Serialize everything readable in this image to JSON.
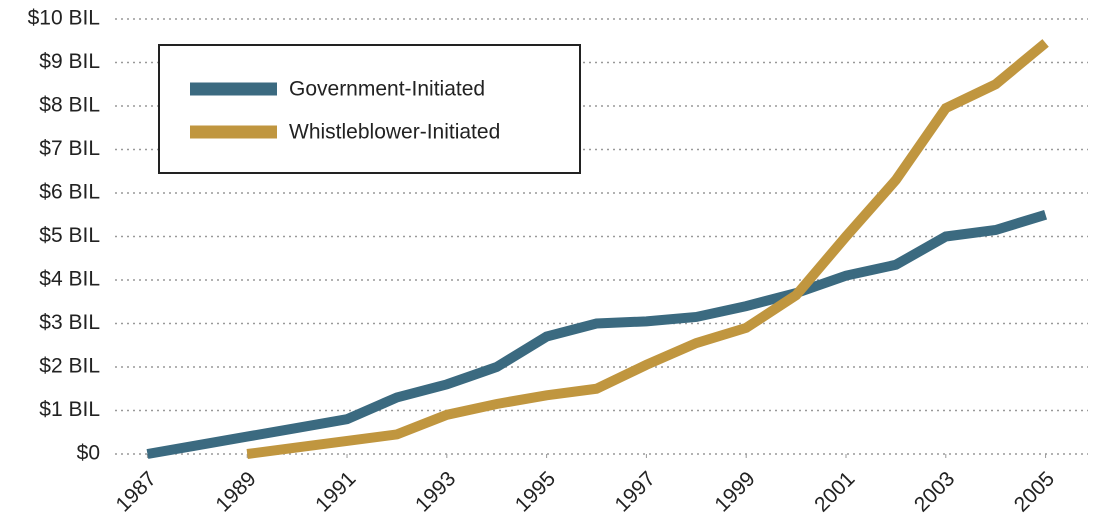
{
  "chart_data": {
    "type": "line",
    "x": [
      1987,
      1988,
      1989,
      1990,
      1991,
      1992,
      1993,
      1994,
      1995,
      1996,
      1997,
      1998,
      1999,
      2000,
      2001,
      2002,
      2003,
      2004,
      2005
    ],
    "series": [
      {
        "name": "Government-Initiated",
        "color": "#3b6a80",
        "values": [
          0,
          0.2,
          0.4,
          0.6,
          0.8,
          1.3,
          1.6,
          2.0,
          2.7,
          3.0,
          3.05,
          3.15,
          3.4,
          3.7,
          4.1,
          4.35,
          5.0,
          5.15,
          5.5
        ]
      },
      {
        "name": "Whistleblower-Initiated",
        "color": "#c0963f",
        "values": [
          null,
          null,
          0,
          0.15,
          0.3,
          0.45,
          0.9,
          1.15,
          1.35,
          1.5,
          2.05,
          2.55,
          2.9,
          3.65,
          5.0,
          6.3,
          7.95,
          8.5,
          9.45
        ]
      }
    ],
    "xlim": [
      1986.35,
      2005.85
    ],
    "xticks": [
      1987,
      1989,
      1991,
      1993,
      1995,
      1997,
      1999,
      2001,
      2003,
      2005
    ],
    "ylim": [
      0,
      10
    ],
    "yticks": [
      {
        "value": 0,
        "label": "$0"
      },
      {
        "value": 1,
        "label": "$1 BIL"
      },
      {
        "value": 2,
        "label": "$2 BIL"
      },
      {
        "value": 3,
        "label": "$3 BIL"
      },
      {
        "value": 4,
        "label": "$4 BIL"
      },
      {
        "value": 5,
        "label": "$5 BIL"
      },
      {
        "value": 6,
        "label": "$6 BIL"
      },
      {
        "value": 7,
        "label": "$7 BIL"
      },
      {
        "value": 8,
        "label": "$8 BIL"
      },
      {
        "value": 9,
        "label": "$9 BIL"
      },
      {
        "value": 10,
        "label": "$10 BIL"
      }
    ],
    "grid": true,
    "legend": "upper-left"
  }
}
